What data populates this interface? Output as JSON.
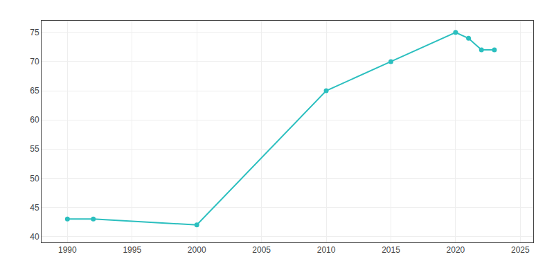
{
  "chart_data": {
    "type": "line",
    "x": [
      1990,
      1992,
      2000,
      2010,
      2015,
      2020,
      2021,
      2022,
      2023
    ],
    "values": [
      43,
      43,
      42,
      65,
      70,
      75,
      74,
      72,
      72
    ],
    "color": "#2BBFBF",
    "marker": "circle",
    "xlim": [
      1988,
      2026
    ],
    "xticks": [
      1990,
      1995,
      2000,
      2005,
      2010,
      2015,
      2020,
      2025
    ],
    "ylim": [
      39,
      77
    ],
    "yticks": [
      40,
      45,
      50,
      55,
      60,
      65,
      70,
      75
    ],
    "grid": true
  }
}
